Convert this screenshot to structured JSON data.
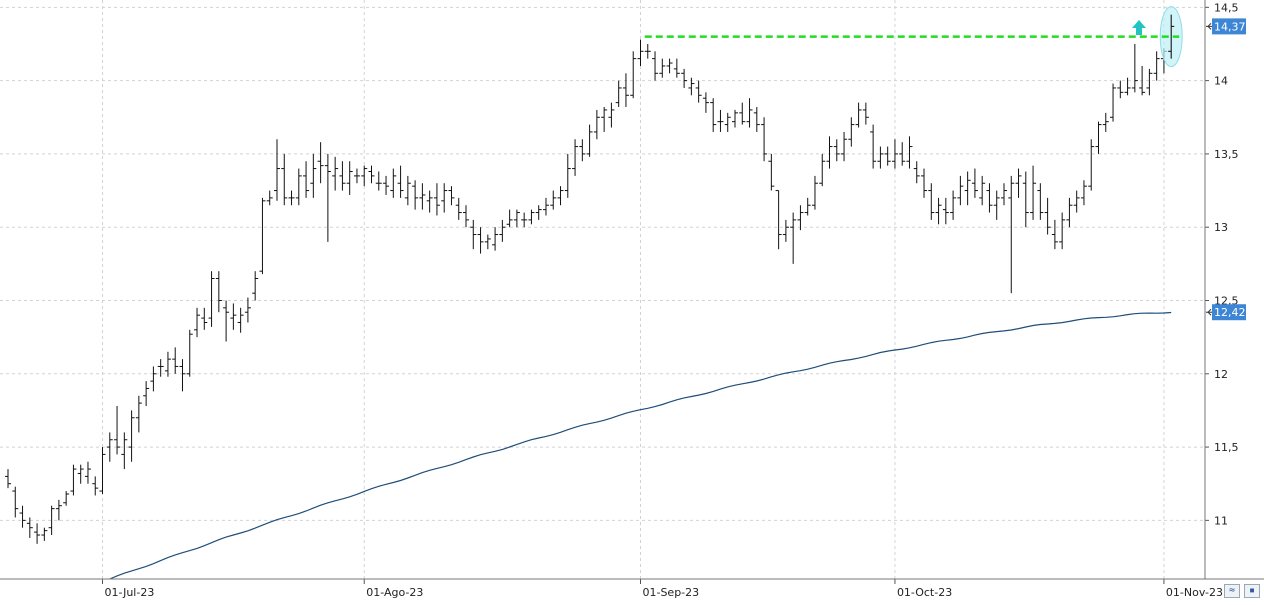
{
  "chart_data": {
    "type": "ohlc",
    "title": "",
    "ylim": [
      10.6,
      14.55
    ],
    "y_ticks": [
      {
        "value": 11,
        "label": "11"
      },
      {
        "value": 11.5,
        "label": "11,5"
      },
      {
        "value": 12,
        "label": "12"
      },
      {
        "value": 12.5,
        "label": "12,5"
      },
      {
        "value": 13,
        "label": "13"
      },
      {
        "value": 13.5,
        "label": "13,5"
      },
      {
        "value": 14,
        "label": "14"
      },
      {
        "value": 14.5,
        "label": "14,5"
      }
    ],
    "x_ticks": [
      {
        "index": 13,
        "label": "01-Jul-23"
      },
      {
        "index": 49,
        "label": "01-Ago-23"
      },
      {
        "index": 87,
        "label": "01-Sep-23"
      },
      {
        "index": 122,
        "label": "01-Oct-23"
      },
      {
        "index": 159,
        "label": "01-Nov-23"
      }
    ],
    "grid": true,
    "price_series": {
      "ohlc": [
        [
          11.3,
          11.35,
          11.22,
          11.25
        ],
        [
          11.2,
          11.23,
          11.02,
          11.08
        ],
        [
          11.05,
          11.1,
          10.95,
          11.0
        ],
        [
          10.98,
          11.02,
          10.88,
          10.95
        ],
        [
          10.92,
          10.98,
          10.84,
          10.9
        ],
        [
          10.9,
          10.95,
          10.86,
          10.93
        ],
        [
          10.95,
          11.1,
          10.9,
          11.08
        ],
        [
          11.08,
          11.14,
          11.0,
          11.1
        ],
        [
          11.12,
          11.2,
          11.1,
          11.18
        ],
        [
          11.2,
          11.38,
          11.17,
          11.35
        ],
        [
          11.32,
          11.38,
          11.25,
          11.35
        ],
        [
          11.3,
          11.4,
          11.25,
          11.35
        ],
        [
          11.25,
          11.3,
          11.17,
          11.22
        ],
        [
          11.2,
          11.5,
          11.18,
          11.45
        ],
        [
          11.5,
          11.6,
          11.4,
          11.55
        ],
        [
          11.55,
          11.78,
          11.45,
          11.5
        ],
        [
          11.45,
          11.6,
          11.35,
          11.55
        ],
        [
          11.5,
          11.75,
          11.4,
          11.7
        ],
        [
          11.7,
          11.85,
          11.6,
          11.8
        ],
        [
          11.85,
          11.95,
          11.78,
          11.9
        ],
        [
          11.95,
          12.05,
          11.88,
          12.0
        ],
        [
          12.05,
          12.1,
          11.98,
          12.05
        ],
        [
          12.02,
          12.15,
          11.98,
          12.1
        ],
        [
          12.1,
          12.18,
          12.0,
          12.05
        ],
        [
          12.05,
          12.1,
          11.88,
          12.0
        ],
        [
          12.0,
          12.3,
          11.98,
          12.27
        ],
        [
          12.3,
          12.45,
          12.25,
          12.4
        ],
        [
          12.38,
          12.45,
          12.3,
          12.35
        ],
        [
          12.38,
          12.7,
          12.32,
          12.65
        ],
        [
          12.65,
          12.7,
          12.42,
          12.5
        ],
        [
          12.45,
          12.5,
          12.22,
          12.42
        ],
        [
          12.38,
          12.48,
          12.3,
          12.4
        ],
        [
          12.35,
          12.45,
          12.28,
          12.4
        ],
        [
          12.42,
          12.52,
          12.35,
          12.45
        ],
        [
          12.55,
          12.7,
          12.5,
          12.65
        ],
        [
          12.7,
          13.2,
          12.68,
          13.18
        ],
        [
          13.18,
          13.25,
          13.15,
          13.2
        ],
        [
          13.25,
          13.6,
          13.18,
          13.4
        ],
        [
          13.4,
          13.5,
          13.15,
          13.2
        ],
        [
          13.2,
          13.25,
          13.15,
          13.2
        ],
        [
          13.2,
          13.4,
          13.15,
          13.35
        ],
        [
          13.35,
          13.45,
          13.2,
          13.25
        ],
        [
          13.3,
          13.5,
          13.2,
          13.4
        ],
        [
          13.45,
          13.58,
          13.3,
          13.42
        ],
        [
          13.42,
          13.5,
          12.9,
          13.38
        ],
        [
          13.35,
          13.48,
          13.25,
          13.4
        ],
        [
          13.35,
          13.45,
          13.25,
          13.3
        ],
        [
          13.3,
          13.45,
          13.22,
          13.38
        ],
        [
          13.35,
          13.4,
          13.3,
          13.35
        ],
        [
          13.35,
          13.42,
          13.28,
          13.4
        ],
        [
          13.38,
          13.42,
          13.3,
          13.35
        ],
        [
          13.3,
          13.38,
          13.25,
          13.3
        ],
        [
          13.3,
          13.35,
          13.22,
          13.28
        ],
        [
          13.25,
          13.4,
          13.2,
          13.35
        ],
        [
          13.3,
          13.42,
          13.2,
          13.25
        ],
        [
          13.2,
          13.35,
          13.15,
          13.3
        ],
        [
          13.28,
          13.32,
          13.12,
          13.2
        ],
        [
          13.2,
          13.3,
          13.12,
          13.22
        ],
        [
          13.18,
          13.25,
          13.1,
          13.2
        ],
        [
          13.2,
          13.3,
          13.08,
          13.15
        ],
        [
          13.18,
          13.3,
          13.1,
          13.25
        ],
        [
          13.25,
          13.28,
          13.15,
          13.2
        ],
        [
          13.15,
          13.2,
          13.05,
          13.1
        ],
        [
          13.1,
          13.15,
          13.0,
          13.05
        ],
        [
          13.0,
          13.05,
          12.85,
          12.95
        ],
        [
          12.95,
          13.0,
          12.82,
          12.9
        ],
        [
          12.9,
          12.95,
          12.85,
          12.92
        ],
        [
          12.88,
          13.0,
          12.84,
          12.95
        ],
        [
          12.95,
          13.05,
          12.9,
          13.0
        ],
        [
          13.02,
          13.12,
          13.0,
          13.05
        ],
        [
          13.05,
          13.12,
          13.0,
          13.1
        ],
        [
          13.05,
          13.1,
          13.0,
          13.05
        ],
        [
          13.05,
          13.12,
          13.02,
          13.1
        ],
        [
          13.1,
          13.15,
          13.05,
          13.12
        ],
        [
          13.12,
          13.2,
          13.08,
          13.15
        ],
        [
          13.15,
          13.25,
          13.12,
          13.2
        ],
        [
          13.2,
          13.28,
          13.15,
          13.25
        ],
        [
          13.25,
          13.5,
          13.2,
          13.4
        ],
        [
          13.4,
          13.6,
          13.35,
          13.55
        ],
        [
          13.55,
          13.6,
          13.45,
          13.5
        ],
        [
          13.5,
          13.7,
          13.48,
          13.65
        ],
        [
          13.65,
          13.8,
          13.6,
          13.75
        ],
        [
          13.75,
          13.82,
          13.65,
          13.8
        ],
        [
          13.75,
          13.85,
          13.68,
          13.8
        ],
        [
          13.85,
          14.0,
          13.82,
          13.95
        ],
        [
          13.95,
          14.05,
          13.82,
          13.9
        ],
        [
          13.9,
          14.2,
          13.88,
          14.15
        ],
        [
          14.15,
          14.28,
          14.1,
          14.2
        ],
        [
          14.2,
          14.25,
          14.15,
          14.2
        ],
        [
          14.15,
          14.2,
          14.0,
          14.05
        ],
        [
          14.05,
          14.15,
          14.02,
          14.1
        ],
        [
          14.1,
          14.15,
          14.05,
          14.12
        ],
        [
          14.08,
          14.15,
          14.02,
          14.05
        ],
        [
          14.05,
          14.08,
          13.95,
          14.0
        ],
        [
          13.95,
          14.02,
          13.9,
          13.98
        ],
        [
          13.95,
          14.0,
          13.85,
          13.9
        ],
        [
          13.88,
          13.92,
          13.78,
          13.85
        ],
        [
          13.85,
          13.88,
          13.65,
          13.7
        ],
        [
          13.72,
          13.8,
          13.65,
          13.72
        ],
        [
          13.7,
          13.78,
          13.65,
          13.75
        ],
        [
          13.72,
          13.8,
          13.68,
          13.78
        ],
        [
          13.78,
          13.85,
          13.7,
          13.72
        ],
        [
          13.72,
          13.88,
          13.68,
          13.8
        ],
        [
          13.78,
          13.82,
          13.65,
          13.7
        ],
        [
          13.7,
          13.75,
          13.45,
          13.5
        ],
        [
          13.45,
          13.5,
          13.25,
          13.28
        ],
        [
          13.25,
          13.25,
          12.85,
          12.95
        ],
        [
          12.95,
          13.05,
          12.9,
          13.0
        ],
        [
          13.0,
          13.1,
          12.75,
          13.05
        ],
        [
          13.05,
          13.15,
          12.98,
          13.1
        ],
        [
          13.1,
          13.2,
          13.08,
          13.15
        ],
        [
          13.15,
          13.35,
          13.12,
          13.3
        ],
        [
          13.3,
          13.5,
          13.28,
          13.45
        ],
        [
          13.45,
          13.62,
          13.4,
          13.55
        ],
        [
          13.55,
          13.6,
          13.45,
          13.5
        ],
        [
          13.5,
          13.65,
          13.45,
          13.6
        ],
        [
          13.6,
          13.75,
          13.55,
          13.7
        ],
        [
          13.7,
          13.85,
          13.68,
          13.8
        ],
        [
          13.8,
          13.85,
          13.7,
          13.75
        ],
        [
          13.65,
          13.7,
          13.4,
          13.45
        ],
        [
          13.45,
          13.55,
          13.4,
          13.5
        ],
        [
          13.5,
          13.55,
          13.42,
          13.45
        ],
        [
          13.45,
          13.6,
          13.4,
          13.5
        ],
        [
          13.5,
          13.58,
          13.42,
          13.45
        ],
        [
          13.45,
          13.62,
          13.4,
          13.55
        ],
        [
          13.4,
          13.45,
          13.3,
          13.35
        ],
        [
          13.35,
          13.4,
          13.2,
          13.25
        ],
        [
          13.25,
          13.3,
          13.05,
          13.1
        ],
        [
          13.1,
          13.2,
          13.02,
          13.15
        ],
        [
          13.12,
          13.2,
          13.02,
          13.1
        ],
        [
          13.1,
          13.25,
          13.05,
          13.2
        ],
        [
          13.2,
          13.35,
          13.15,
          13.28
        ],
        [
          13.25,
          13.38,
          13.15,
          13.32
        ],
        [
          13.3,
          13.4,
          13.2,
          13.25
        ],
        [
          13.2,
          13.35,
          13.15,
          13.3
        ],
        [
          13.25,
          13.3,
          13.1,
          13.15
        ],
        [
          13.15,
          13.25,
          13.05,
          13.2
        ],
        [
          13.2,
          13.3,
          13.15,
          13.25
        ],
        [
          13.2,
          13.35,
          12.55,
          13.3
        ],
        [
          13.3,
          13.4,
          13.2,
          13.35
        ],
        [
          13.3,
          13.38,
          13.0,
          13.1
        ],
        [
          13.1,
          13.42,
          13.05,
          13.3
        ],
        [
          13.25,
          13.3,
          13.05,
          13.1
        ],
        [
          13.1,
          13.2,
          12.95,
          13.0
        ],
        [
          12.95,
          13.05,
          12.85,
          12.9
        ],
        [
          12.9,
          13.1,
          12.85,
          13.05
        ],
        [
          13.05,
          13.2,
          13.0,
          13.15
        ],
        [
          13.15,
          13.25,
          13.1,
          13.2
        ],
        [
          13.2,
          13.32,
          13.15,
          13.28
        ],
        [
          13.28,
          13.6,
          13.25,
          13.55
        ],
        [
          13.55,
          13.72,
          13.5,
          13.7
        ],
        [
          13.7,
          13.78,
          13.65,
          13.72
        ],
        [
          13.75,
          13.98,
          13.72,
          13.95
        ],
        [
          13.95,
          14.0,
          13.88,
          13.92
        ],
        [
          13.92,
          14.02,
          13.9,
          13.95
        ],
        [
          13.95,
          14.25,
          13.92,
          14.0
        ],
        [
          13.95,
          14.1,
          13.9,
          13.92
        ],
        [
          13.95,
          14.08,
          13.9,
          14.05
        ],
        [
          14.05,
          14.2,
          14.0,
          14.15
        ],
        [
          14.15,
          14.22,
          14.05,
          14.2
        ],
        [
          14.2,
          14.45,
          14.15,
          14.37
        ]
      ],
      "last_value": 14.37,
      "last_label": "14,37",
      "color": "#111111"
    },
    "moving_average": {
      "start_value": 10.6,
      "end_value": 12.42,
      "end_label": "12,42",
      "color": "#1f4e79"
    },
    "resistance_level": {
      "value": 14.3,
      "color": "#22dd22"
    },
    "breakout_arrow_color": "#22c3c3",
    "highlight_color": "#bdeff7"
  }
}
